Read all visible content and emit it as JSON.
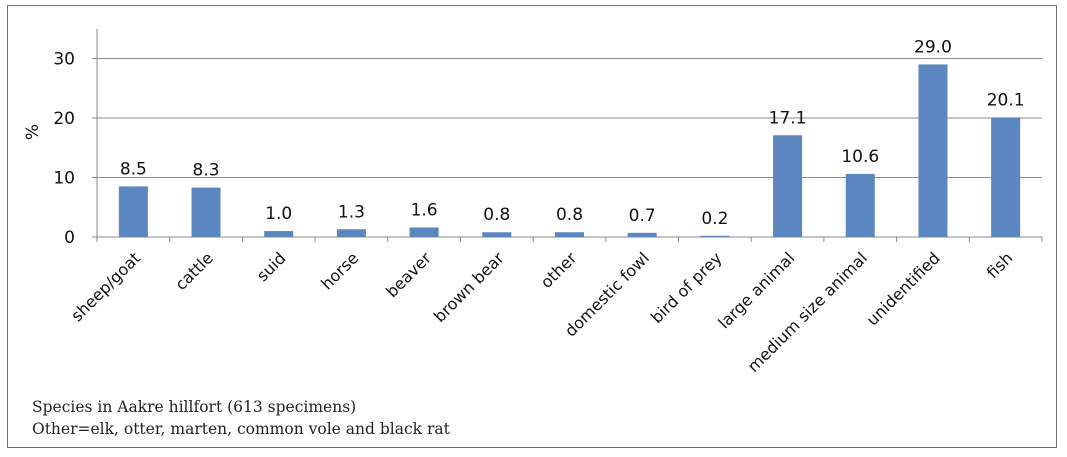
{
  "chart_data": {
    "type": "bar",
    "title": "",
    "xlabel": "",
    "ylabel": "%",
    "ylim": [
      0,
      35
    ],
    "yticks": [
      0,
      10,
      20,
      30
    ],
    "grid": true,
    "bar_color": "#5b86c0",
    "categories": [
      "sheep/goat",
      "cattle",
      "suid",
      "horse",
      "beaver",
      "brown bear",
      "other",
      "domestic fowl",
      "bird of prey",
      "large animal",
      "medium size animal",
      "unidentified",
      "fish"
    ],
    "values": [
      8.5,
      8.3,
      1.0,
      1.3,
      1.6,
      0.8,
      0.8,
      0.7,
      0.2,
      17.1,
      10.6,
      29.0,
      20.1
    ],
    "value_labels": [
      "8.5",
      "8.3",
      "1.0",
      "1.3",
      "1.6",
      "0.8",
      "0.8",
      "0.7",
      "0.2",
      "17.1",
      "10.6",
      "29.0",
      "20.1"
    ]
  },
  "caption": {
    "line1": "Species in Aakre hillfort (613 specimens)",
    "line2": "Other=elk, otter, marten, common vole and black rat"
  }
}
